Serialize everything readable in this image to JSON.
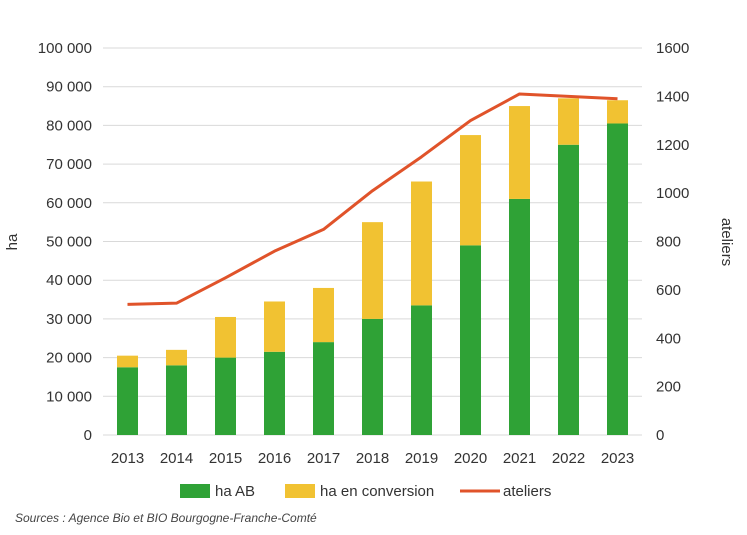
{
  "chart_data": {
    "type": "bar",
    "stacked": true,
    "categories": [
      "2013",
      "2014",
      "2015",
      "2016",
      "2017",
      "2018",
      "2019",
      "2020",
      "2021",
      "2022",
      "2023"
    ],
    "series": [
      {
        "name": "ha  AB",
        "kind": "bar",
        "axis": "left",
        "color": "#2fa236",
        "values": [
          17500,
          18000,
          20000,
          21500,
          24000,
          30000,
          33500,
          49000,
          61000,
          75000,
          80500
        ]
      },
      {
        "name": "ha en conversion",
        "kind": "bar",
        "axis": "left",
        "color": "#f1c232",
        "values": [
          3000,
          4000,
          10500,
          13000,
          14000,
          25000,
          32000,
          28500,
          24000,
          12000,
          6000
        ]
      },
      {
        "name": "ateliers",
        "kind": "line",
        "axis": "right",
        "color": "#e0532a",
        "values": [
          540,
          545,
          650,
          760,
          850,
          1010,
          1150,
          1300,
          1410,
          1400,
          1390
        ]
      }
    ],
    "ylabel": "ha",
    "y2label": "ateliers",
    "ylim": [
      0,
      100000
    ],
    "y2lim": [
      0,
      1600
    ],
    "yticks": [
      0,
      10000,
      20000,
      30000,
      40000,
      50000,
      60000,
      70000,
      80000,
      90000,
      100000
    ],
    "yticklabels": [
      "0",
      "10 000",
      "20 000",
      "30 000",
      "40 000",
      "50 000",
      "60 000",
      "70 000",
      "80 000",
      "90 000",
      "100 000"
    ],
    "y2ticks": [
      0,
      200,
      400,
      600,
      800,
      1000,
      1200,
      1400,
      1600
    ],
    "grid": true,
    "legend_position": "bottom"
  },
  "source_text": "Sources : Agence Bio et BIO Bourgogne-Franche-Comté"
}
